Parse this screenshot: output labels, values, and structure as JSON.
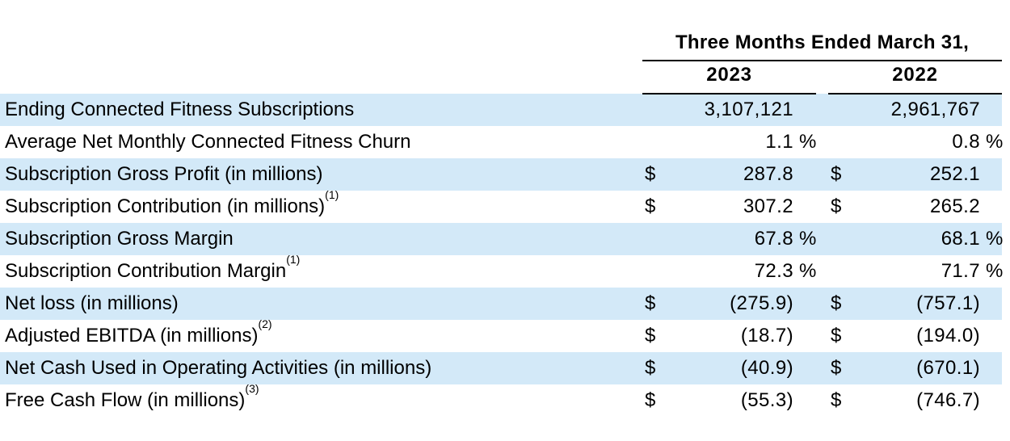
{
  "table": {
    "header": {
      "period": "Three Months Ended March 31,",
      "years": [
        "2023",
        "2022"
      ]
    },
    "rows": [
      {
        "label": "Ending Connected Fitness Subscriptions",
        "sup": "",
        "d1": "",
        "v1": "3,107,121",
        "s1": "",
        "d2": "",
        "v2": "2,961,767",
        "s2": ""
      },
      {
        "label": "Average Net Monthly Connected Fitness Churn",
        "sup": "",
        "d1": "",
        "v1": "1.1",
        "s1": "%",
        "d2": "",
        "v2": "0.8",
        "s2": "%"
      },
      {
        "label": "Subscription Gross Profit (in millions)",
        "sup": "",
        "d1": "$",
        "v1": "287.8",
        "s1": "",
        "d2": "$",
        "v2": "252.1",
        "s2": ""
      },
      {
        "label": "Subscription Contribution (in millions)",
        "sup": "(1)",
        "d1": "$",
        "v1": "307.2",
        "s1": "",
        "d2": "$",
        "v2": "265.2",
        "s2": ""
      },
      {
        "label": "Subscription Gross Margin",
        "sup": "",
        "d1": "",
        "v1": "67.8",
        "s1": "%",
        "d2": "",
        "v2": "68.1",
        "s2": "%"
      },
      {
        "label": "Subscription Contribution Margin",
        "sup": "(1)",
        "d1": "",
        "v1": "72.3",
        "s1": "%",
        "d2": "",
        "v2": "71.7",
        "s2": "%"
      },
      {
        "label": "Net loss (in millions)",
        "sup": "",
        "d1": "$",
        "v1": "(275.9)",
        "s1": "",
        "d2": "$",
        "v2": "(757.1)",
        "s2": ""
      },
      {
        "label": "Adjusted EBITDA (in millions)",
        "sup": "(2)",
        "d1": "$",
        "v1": "(18.7)",
        "s1": "",
        "d2": "$",
        "v2": "(194.0)",
        "s2": ""
      },
      {
        "label": "Net Cash Used in Operating Activities (in millions)",
        "sup": "",
        "d1": "$",
        "v1": "(40.9)",
        "s1": "",
        "d2": "$",
        "v2": "(670.1)",
        "s2": ""
      },
      {
        "label": "Free Cash Flow (in millions)",
        "sup": "(3)",
        "d1": "$",
        "v1": "(55.3)",
        "s1": "",
        "d2": "$",
        "v2": "(746.7)",
        "s2": ""
      }
    ]
  }
}
